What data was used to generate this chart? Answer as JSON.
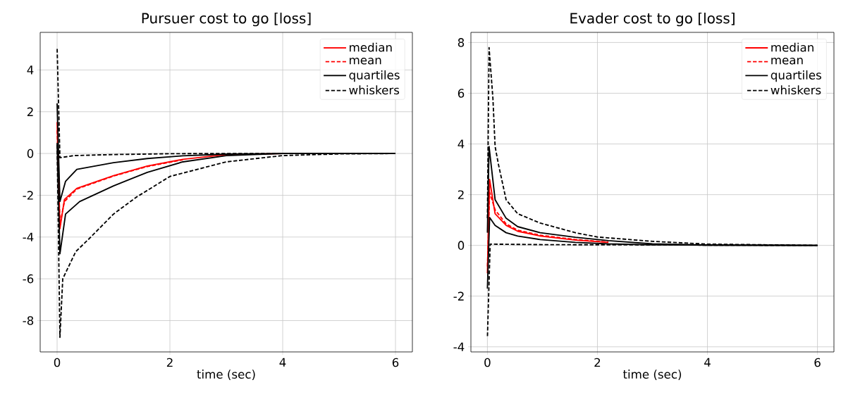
{
  "chart_data": [
    {
      "type": "line",
      "title": "Pursuer cost to go [loss]",
      "xlabel": "time (sec)",
      "xlim": [
        -0.3,
        6.3
      ],
      "ylim": [
        -9.5,
        5.8
      ],
      "xticks": [
        0,
        2,
        4,
        6
      ],
      "yticks": [
        -8,
        -6,
        -4,
        -2,
        0,
        2,
        4
      ],
      "grid": true,
      "legend": "top right",
      "series": [
        {
          "name": "median",
          "color": "#ff0000",
          "line_style": "solid",
          "x": [
            0,
            0.05,
            0.13,
            0.35,
            1.0,
            1.6,
            2.23,
            3,
            4
          ],
          "values": [
            1.5,
            -3.6,
            -2.2,
            -1.67,
            -1.06,
            -0.6,
            -0.28,
            -0.05,
            0
          ]
        },
        {
          "name": "mean",
          "color": "#ff0000",
          "line_style": "dashed",
          "x": [
            0,
            0.05,
            0.13,
            0.35,
            1.0,
            1.6,
            2.23
          ],
          "values": [
            1.2,
            -3.4,
            -2.3,
            -1.7,
            -1.08,
            -0.62,
            -0.3
          ]
        },
        {
          "name": "quartiles",
          "color": "#000000",
          "line_style": "solid",
          "x": [
            0,
            0.05,
            0.15,
            0.35,
            1.0,
            1.6,
            2.23,
            3,
            4,
            6
          ],
          "values": [
            2.4,
            -2.3,
            -1.33,
            -0.76,
            -0.44,
            -0.24,
            -0.11,
            -0.03,
            0,
            0
          ]
        },
        {
          "color": "#000000",
          "line_style": "solid",
          "x": [
            0,
            0.05,
            0.15,
            0.4,
            1.0,
            1.6,
            2.23,
            3,
            4,
            6
          ],
          "values": [
            0.5,
            -4.8,
            -2.9,
            -2.3,
            -1.55,
            -0.9,
            -0.4,
            -0.1,
            0,
            0
          ]
        },
        {
          "name": "whiskers",
          "color": "#000000",
          "line_style": "dashed",
          "x": [
            0,
            0.05,
            0.3,
            1,
            2,
            3,
            6
          ],
          "values": [
            5.1,
            -0.2,
            -0.1,
            -0.05,
            -0.01,
            0,
            0
          ]
        },
        {
          "color": "#000000",
          "line_style": "dashed",
          "x": [
            0,
            0.05,
            0.1,
            0.33,
            0.56,
            1.0,
            1.4,
            2,
            3,
            4,
            5,
            6
          ],
          "values": [
            0.5,
            -8.8,
            -6,
            -4.7,
            -4.1,
            -2.9,
            -2.1,
            -1.1,
            -0.4,
            -0.1,
            -0.02,
            0
          ]
        }
      ]
    },
    {
      "type": "line",
      "title": "Evader cost to go [loss]",
      "xlabel": "time (sec)",
      "xlim": [
        -0.3,
        6.3
      ],
      "ylim": [
        -4.2,
        8.4
      ],
      "xticks": [
        0,
        2,
        4,
        6
      ],
      "yticks": [
        -4,
        -2,
        0,
        2,
        4,
        6,
        8
      ],
      "grid": true,
      "legend": "top right",
      "series": [
        {
          "name": "median",
          "color": "#ff0000",
          "line_style": "solid",
          "x": [
            0,
            0.04,
            0.14,
            0.34,
            0.55,
            0.96,
            1.6,
            2.2
          ],
          "values": [
            -1.1,
            2.6,
            1.25,
            0.79,
            0.56,
            0.37,
            0.21,
            0.12
          ]
        },
        {
          "name": "mean",
          "color": "#ff0000",
          "line_style": "dashed",
          "x": [
            0,
            0.04,
            0.14,
            0.34,
            0.55,
            0.96,
            1.6,
            2.2
          ],
          "values": [
            -0.9,
            2.1,
            1.4,
            0.85,
            0.6,
            0.4,
            0.23,
            0.13
          ]
        },
        {
          "name": "quartiles",
          "color": "#000000",
          "line_style": "solid",
          "x": [
            0,
            0.03,
            0.14,
            0.34,
            0.55,
            0.96,
            1.6,
            2.2,
            3,
            4,
            6
          ],
          "values": [
            0.5,
            3.9,
            1.8,
            1.07,
            0.74,
            0.5,
            0.32,
            0.19,
            0.06,
            0.01,
            0
          ]
        },
        {
          "color": "#000000",
          "line_style": "solid",
          "x": [
            0,
            0.04,
            0.14,
            0.34,
            0.55,
            0.96,
            1.6,
            2.2,
            3,
            6
          ],
          "values": [
            -1.7,
            1.1,
            0.79,
            0.5,
            0.37,
            0.23,
            0.12,
            0.06,
            0.02,
            0
          ]
        },
        {
          "name": "whiskers",
          "color": "#000000",
          "line_style": "dashed",
          "x": [
            0,
            0.03,
            0.1,
            0.14,
            0.2,
            0.34,
            0.55,
            0.96,
            1.6,
            2,
            3,
            4,
            6
          ],
          "values": [
            1,
            7.8,
            5.8,
            3.9,
            3.2,
            1.8,
            1.25,
            0.88,
            0.5,
            0.33,
            0.16,
            0.05,
            0
          ]
        },
        {
          "color": "#000000",
          "line_style": "dashed",
          "x": [
            0,
            0.05,
            1,
            6
          ],
          "values": [
            -3.65,
            0.05,
            0.03,
            0
          ]
        }
      ]
    }
  ]
}
